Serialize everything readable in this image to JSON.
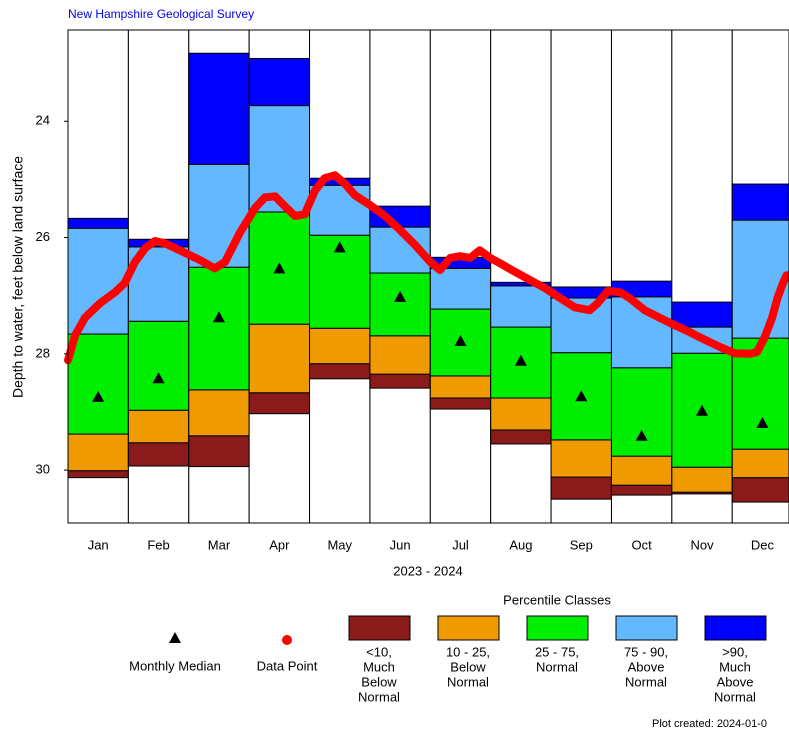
{
  "chart_data": {
    "type": "percentile",
    "title": "New Hampshire Geological Survey",
    "ylabel": "Depth to water, feet below land surface",
    "xlabel": "2023 - 2024",
    "categories": [
      "Jan",
      "Feb",
      "Mar",
      "Apr",
      "May",
      "Jun",
      "Jul",
      "Aug",
      "Sep",
      "Oct",
      "Nov",
      "Dec"
    ],
    "xlim": [
      0,
      11.94
    ],
    "ylim": [
      22.43,
      30.91
    ],
    "y_inverted": true,
    "yticks": [
      24,
      26,
      28,
      30
    ],
    "bounds": [
      [
        25.67,
        26.03,
        22.83,
        22.92,
        24.98,
        25.46,
        26.34,
        26.77,
        26.85,
        26.75,
        27.11,
        25.08
      ],
      [
        25.84,
        26.16,
        24.74,
        23.73,
        25.1,
        25.82,
        26.53,
        26.83,
        27.04,
        27.02,
        27.54,
        25.7
      ],
      [
        27.66,
        27.44,
        26.51,
        25.56,
        25.96,
        26.61,
        27.23,
        27.54,
        27.98,
        28.24,
        27.99,
        27.73
      ],
      [
        29.38,
        28.97,
        28.62,
        27.49,
        27.56,
        27.69,
        28.38,
        28.76,
        29.48,
        29.76,
        29.95,
        29.64
      ],
      [
        30.01,
        29.53,
        29.41,
        28.67,
        28.17,
        28.35,
        28.76,
        29.31,
        30.12,
        30.26,
        30.38,
        30.13
      ],
      [
        30.13,
        29.93,
        29.94,
        29.03,
        28.43,
        28.59,
        28.95,
        29.55,
        30.5,
        30.43,
        30.41,
        30.55
      ]
    ],
    "legend_title": "Percentile Classes",
    "classes": [
      {
        "label": [
          "<10,",
          "Much",
          "Below",
          "Normal"
        ],
        "color": "#8b1a1a"
      },
      {
        "label": [
          "10 - 25,",
          "Below",
          "Normal"
        ],
        "color": "#ee9a00"
      },
      {
        "label": [
          "25 - 75,",
          "Normal"
        ],
        "color": "#00ee00"
      },
      {
        "label": [
          "75 - 90,",
          "Above",
          "Normal"
        ],
        "color": "#63b8ff"
      },
      {
        "label": [
          ">90,",
          "Much",
          "Above",
          "Normal"
        ],
        "color": "#0000ff"
      }
    ],
    "median": {
      "name": "Monthly Median",
      "color": "#000000",
      "values": [
        28.74,
        28.42,
        27.37,
        26.53,
        26.17,
        27.02,
        27.78,
        28.12,
        28.73,
        29.41,
        28.98,
        29.19
      ]
    },
    "points": {
      "name": "Data Point",
      "color": "#ff0000",
      "x": [
        0,
        0.12,
        0.28,
        0.53,
        0.78,
        0.94,
        1.11,
        1.28,
        1.44,
        1.61,
        1.85,
        2.19,
        2.43,
        2.6,
        2.85,
        3.1,
        3.26,
        3.43,
        3.59,
        3.76,
        3.92,
        4.09,
        4.25,
        4.42,
        4.59,
        4.75,
        5.0,
        5.25,
        5.5,
        5.75,
        6.0,
        6.16,
        6.33,
        6.49,
        6.66,
        6.82,
        6.99,
        7.15,
        7.4,
        7.65,
        7.9,
        8.15,
        8.39,
        8.64,
        8.77,
        8.94,
        9.14,
        9.3,
        9.55,
        9.8,
        10.05,
        10.3,
        10.55,
        10.79,
        11.04,
        11.29,
        11.41,
        11.54,
        11.66,
        11.75,
        11.84,
        11.9
      ],
      "values": [
        28.11,
        27.68,
        27.38,
        27.13,
        26.94,
        26.78,
        26.42,
        26.18,
        26.06,
        26.1,
        26.22,
        26.39,
        26.53,
        26.42,
        25.91,
        25.49,
        25.31,
        25.29,
        25.46,
        25.63,
        25.6,
        25.19,
        24.98,
        24.93,
        25.08,
        25.27,
        25.44,
        25.63,
        25.87,
        26.13,
        26.42,
        26.56,
        26.35,
        26.32,
        26.35,
        26.22,
        26.35,
        26.44,
        26.59,
        26.73,
        26.87,
        27.04,
        27.2,
        27.25,
        27.13,
        26.92,
        26.94,
        27.04,
        27.25,
        27.38,
        27.51,
        27.63,
        27.76,
        27.88,
        27.99,
        28.0,
        27.97,
        27.71,
        27.38,
        27.04,
        26.78,
        26.65
      ]
    },
    "footer": "Plot created: 2024-01-0"
  }
}
